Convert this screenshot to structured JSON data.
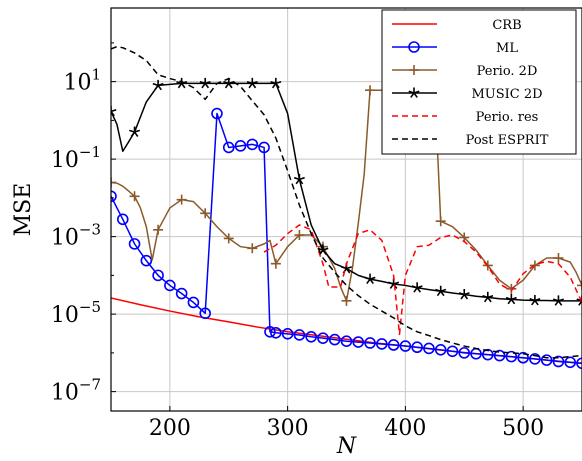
{
  "chart_data": {
    "type": "line",
    "xlabel": "N",
    "ylabel": "MSE",
    "xlim": [
      150,
      550
    ],
    "ylim_log10": [
      -7.5,
      2.9
    ],
    "yscale": "log",
    "grid": true,
    "legend_position": "top-right",
    "x_ticks": [
      200,
      300,
      400,
      500
    ],
    "y_ticks": [
      {
        "exp": 1,
        "base": "10",
        "sup": "1"
      },
      {
        "exp": -1,
        "base": "10",
        "sup": "−1"
      },
      {
        "exp": -3,
        "base": "10",
        "sup": "−3"
      },
      {
        "exp": -5,
        "base": "10",
        "sup": "−5"
      },
      {
        "exp": -7,
        "base": "10",
        "sup": "−7"
      }
    ],
    "series": [
      {
        "name": "CRB",
        "color": "#ff0000",
        "dash": "",
        "marker": "none",
        "x": [
          150,
          175,
          200,
          225,
          250,
          275,
          300,
          325,
          350,
          375,
          400,
          425,
          450,
          475,
          500,
          525,
          550
        ],
        "y": [
          2.6e-05,
          1.75e-05,
          1.2e-05,
          8.5e-06,
          6.3e-06,
          4.6e-06,
          3.5e-06,
          2.8e-06,
          2.25e-06,
          1.8e-06,
          1.5e-06,
          1.22e-06,
          1.02e-06,
          8.7e-07,
          7.4e-07,
          6.3e-07,
          5.4e-07
        ]
      },
      {
        "name": "ML",
        "color": "#0000ff",
        "dash": "",
        "marker": "circle",
        "x": [
          150,
          160,
          170,
          180,
          190,
          200,
          210,
          220,
          230,
          240,
          250,
          260,
          270,
          280,
          285,
          290,
          300,
          310,
          320,
          330,
          340,
          350,
          360,
          370,
          380,
          390,
          400,
          410,
          420,
          430,
          440,
          450,
          460,
          470,
          480,
          490,
          500,
          510,
          520,
          530,
          540,
          550
        ],
        "y": [
          0.011,
          0.0028,
          0.00065,
          0.00024,
          0.0001,
          5.5e-05,
          3.4e-05,
          2e-05,
          1.05e-05,
          1.5,
          0.2,
          0.22,
          0.24,
          0.2,
          3.5e-06,
          3.3e-06,
          3.1e-06,
          2.9e-06,
          2.6e-06,
          2.4e-06,
          2.2e-06,
          2e-06,
          1.9e-06,
          1.8e-06,
          1.7e-06,
          1.6e-06,
          1.5e-06,
          1.4e-06,
          1.3e-06,
          1.2e-06,
          1.1e-06,
          1e-06,
          9.5e-07,
          9e-07,
          8.5e-07,
          8e-07,
          7.5e-07,
          7e-07,
          6.5e-07,
          6e-07,
          5.7e-07,
          5.4e-07
        ]
      },
      {
        "name": "Perio. 2D",
        "color": "#8b5a2b",
        "dash": "",
        "marker": "plus",
        "x": [
          150,
          155,
          160,
          165,
          170,
          175,
          180,
          185,
          190,
          200,
          210,
          220,
          230,
          240,
          250,
          260,
          270,
          280,
          285,
          290,
          300,
          310,
          320,
          330,
          340,
          345,
          350,
          355,
          360,
          365,
          370,
          380,
          390,
          400,
          410,
          420,
          425,
          430,
          440,
          450,
          460,
          470,
          480,
          490,
          500,
          510,
          520,
          530,
          540,
          545,
          550
        ],
        "y": [
          0.025,
          0.024,
          0.02,
          0.015,
          0.011,
          0.0055,
          0.0018,
          0.00025,
          0.0015,
          0.0055,
          0.009,
          0.008,
          0.004,
          0.0018,
          0.0009,
          0.00055,
          0.0005,
          0.00065,
          0.0008,
          0.0002,
          0.00055,
          0.0011,
          0.0011,
          0.00055,
          0.00015,
          5e-05,
          2.2e-05,
          0.00015,
          0.0022,
          0.04,
          6,
          6,
          6,
          6,
          6,
          6,
          6,
          0.0025,
          0.0018,
          0.00095,
          0.00045,
          0.00018,
          7.5e-05,
          4.5e-05,
          7.5e-05,
          0.00018,
          0.00028,
          0.00028,
          0.00022,
          0.00012,
          5.5e-05
        ]
      },
      {
        "name": "MUSIC 2D",
        "color": "#000000",
        "dash": "",
        "marker": "star",
        "x": [
          150,
          155,
          160,
          165,
          170,
          180,
          190,
          200,
          210,
          220,
          230,
          240,
          250,
          260,
          270,
          280,
          290,
          300,
          310,
          320,
          330,
          340,
          350,
          360,
          370,
          380,
          390,
          400,
          410,
          420,
          430,
          440,
          450,
          460,
          470,
          480,
          490,
          500,
          510,
          520,
          530,
          540,
          550
        ],
        "y": [
          1.7,
          0.8,
          0.16,
          0.28,
          0.5,
          3,
          8,
          8.5,
          9,
          9,
          9,
          9,
          9,
          9,
          9,
          9,
          9,
          1.5,
          0.03,
          0.002,
          0.00045,
          0.0002,
          0.00015,
          0.0001,
          8e-05,
          7e-05,
          6e-05,
          5.5e-05,
          4.8e-05,
          4.3e-05,
          3.9e-05,
          3.5e-05,
          3.2e-05,
          2.9e-05,
          2.7e-05,
          2.5e-05,
          2.4e-05,
          2.3e-05,
          2.25e-05,
          2.25e-05,
          2.2e-05,
          2.2e-05,
          2.2e-05
        ]
      },
      {
        "name": "Perio. res",
        "color": "#ff0000",
        "dash": "6,4",
        "marker": "none",
        "x": [
          280,
          290,
          300,
          310,
          320,
          330,
          335,
          340,
          345,
          350,
          360,
          370,
          380,
          390,
          395,
          400,
          410,
          420,
          430,
          440,
          450,
          460,
          470,
          480,
          490,
          500,
          510,
          520,
          530,
          540,
          550
        ],
        "y": [
          0.0004,
          0.0006,
          0.0012,
          0.002,
          0.0015,
          0.0002,
          5e-05,
          5e-05,
          5e-05,
          0.0002,
          0.0012,
          0.0015,
          0.0008,
          0.0001,
          3e-06,
          0.0001,
          0.00055,
          0.0006,
          0.00095,
          0.0011,
          0.00075,
          0.0004,
          0.00017,
          6e-05,
          4e-05,
          0.00011,
          0.00019,
          0.00023,
          0.0002,
          9e-05,
          2e-05
        ]
      },
      {
        "name": "Post ESPRIT",
        "color": "#000000",
        "dash": "6,4",
        "marker": "none",
        "x": [
          150,
          155,
          160,
          170,
          180,
          190,
          200,
          210,
          220,
          230,
          240,
          250,
          260,
          270,
          280,
          290,
          300,
          310,
          320,
          330,
          340,
          350,
          360,
          370,
          380,
          390,
          400,
          410,
          420,
          430,
          440,
          450,
          460,
          470,
          480,
          490,
          500,
          510,
          520,
          530,
          540,
          550
        ],
        "y": [
          70,
          80,
          75,
          55,
          35,
          15,
          12,
          10,
          7,
          3.5,
          9,
          12,
          7.5,
          3.2,
          1.4,
          0.35,
          0.05,
          0.0065,
          0.0012,
          0.00028,
          0.00012,
          5.5e-05,
          3e-05,
          1.8e-05,
          1.2e-05,
          8e-06,
          5e-06,
          3.5e-06,
          2.8e-06,
          2.2e-06,
          1.8e-06,
          1.5e-06,
          1.3e-06,
          1.15e-06,
          1.05e-06,
          1e-06,
          9.5e-07,
          8.5e-07,
          7.5e-07,
          7.5e-07,
          8e-07,
          8.5e-07
        ]
      }
    ]
  }
}
